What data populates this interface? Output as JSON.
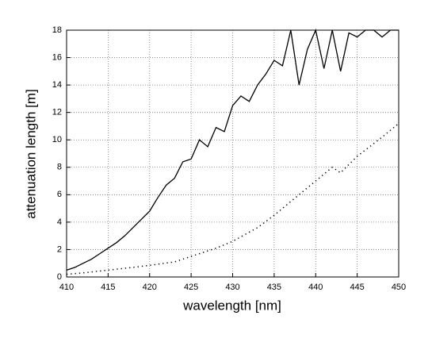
{
  "chart_data": {
    "type": "line",
    "xlabel": "wavelength [nm]",
    "ylabel": "attenuation length [m]",
    "xlim": [
      410,
      450
    ],
    "xticks": [
      410,
      415,
      420,
      425,
      430,
      435,
      440,
      445,
      450
    ],
    "ylim": [
      0,
      18
    ],
    "yticks": [
      0,
      2,
      4,
      6,
      8,
      10,
      12,
      14,
      16,
      18
    ],
    "grid": true,
    "series": [
      {
        "color": "#000000",
        "dash": "solid",
        "x": [
          410,
          411,
          412,
          413,
          414,
          415,
          416,
          417,
          418,
          419,
          420,
          421,
          422,
          423,
          424,
          425,
          426,
          427,
          428,
          429,
          430,
          431,
          432,
          433,
          434,
          435,
          436,
          437,
          438,
          439,
          440,
          441,
          442,
          443,
          444,
          445,
          446,
          447,
          448,
          449,
          450
        ],
        "values": [
          0.5,
          0.7,
          1.0,
          1.3,
          1.7,
          2.1,
          2.5,
          3.0,
          3.6,
          4.2,
          4.8,
          5.8,
          6.7,
          7.2,
          8.4,
          8.6,
          10.0,
          9.5,
          10.9,
          10.6,
          12.5,
          13.2,
          12.8,
          14.0,
          14.8,
          15.8,
          15.4,
          18.0,
          14.0,
          16.6,
          18.0,
          15.2,
          18.0,
          15.0,
          17.8,
          17.5,
          18.0,
          18.0,
          17.5,
          18.0,
          18.0
        ]
      },
      {
        "color": "#000000",
        "dash": "dotted",
        "x": [
          410,
          412,
          415,
          418,
          420,
          423,
          425,
          428,
          430,
          433,
          435,
          437,
          440,
          442,
          443,
          445,
          448,
          450
        ],
        "values": [
          0.2,
          0.3,
          0.5,
          0.7,
          0.85,
          1.1,
          1.5,
          2.1,
          2.6,
          3.6,
          4.5,
          5.5,
          7.0,
          8.0,
          7.6,
          8.8,
          10.2,
          11.2
        ]
      }
    ]
  }
}
